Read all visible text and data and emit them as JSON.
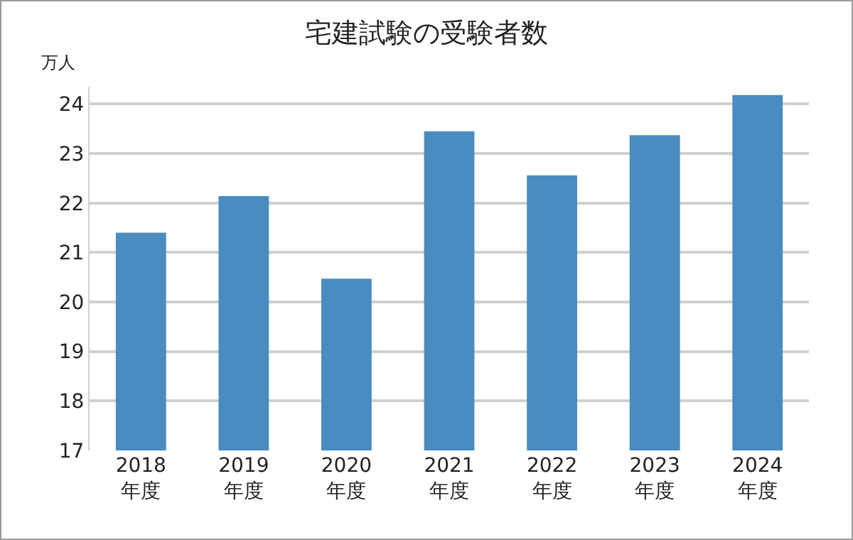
{
  "chart_data": {
    "type": "bar",
    "title": "宅建試験の受験者数",
    "ylabel": "万人",
    "categories": [
      "2018\n年度",
      "2019\n年度",
      "2020\n年度",
      "2021\n年度",
      "2022\n年度",
      "2023\n年度",
      "2024\n年度"
    ],
    "values": [
      21.4,
      22.14,
      20.47,
      23.45,
      22.56,
      23.37,
      24.18
    ],
    "color": "#4a8cbf",
    "ylim": [
      17,
      24.35
    ],
    "yticks": [
      17,
      18,
      19,
      20,
      21,
      22,
      23,
      24
    ],
    "grid": true
  }
}
